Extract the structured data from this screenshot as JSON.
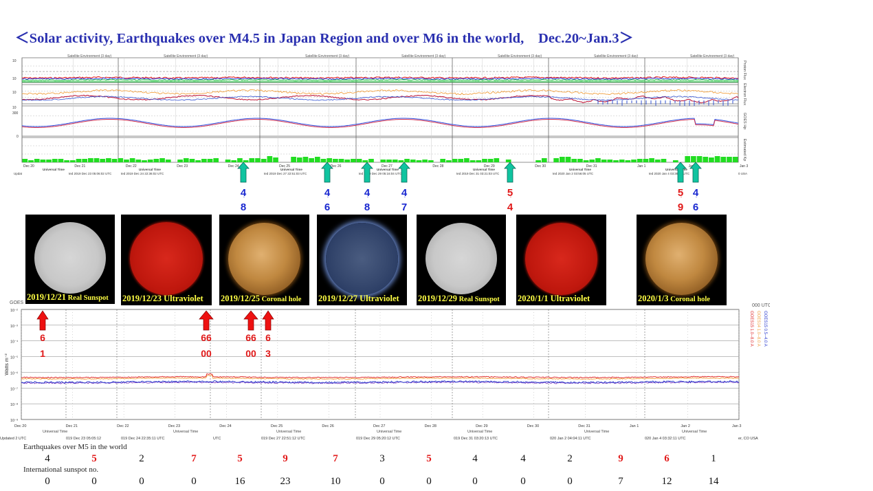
{
  "title": "＜Solar activity, Earthquakes over M4.5 in Japan Region and over M6 in the world,　Dec.20~Jan.3＞",
  "top_panel": {
    "header_labels": [
      "Satellite Environment (3 day)",
      "Satellite Environment (3 day)",
      "Satellite Environment (3 day)",
      "Satellite Environment (3 day)",
      "Satellite Environment (3 day)",
      "Satellite Environment (3 day)",
      "Satellite Environment (3 day)"
    ],
    "right_labels": [
      "Proton Flux",
      "Electron Flux",
      "GOES Hp",
      "Estimated Kp"
    ],
    "date_ticks": [
      "Dec 20",
      "Dec 21",
      "Dec 22",
      "Dec 23",
      "Dec 24",
      "Dec 25",
      "Dec 26",
      "Dec 27",
      "Dec 28",
      "Dec 29",
      "Dec 30",
      "Dec 31",
      "Jan 1",
      "Jan 2",
      "Jan 3"
    ],
    "universal_time_label": "Universal Time",
    "updated_labels": [
      "Updat",
      "ted 2019 Dec 23 05:06:02 UTC",
      "ted 2019 Dec 24 22:36:02 UTC",
      "ted 2019 Dec 27 22:51:03 UTC",
      "ted 2019 Dec 29 05:16:04 UTC",
      "ted 2019 Dec 31 03:21:03 UTC",
      "ted 2020 Jan  2 03:56:05 UTC",
      "ted 2020 Jan  4 03:36:05 UTC",
      "0 USA"
    ]
  },
  "japan_quakes": [
    {
      "top": "4",
      "bottom": "8",
      "color": "blue"
    },
    {
      "top": "4",
      "bottom": "6",
      "color": "blue"
    },
    {
      "top": "4",
      "bottom": "8",
      "color": "blue"
    },
    {
      "top": "4",
      "bottom": "7",
      "color": "blue"
    },
    {
      "top": "5",
      "bottom": "4",
      "color": "red"
    },
    {
      "top": "5",
      "bottom": "9",
      "color": "red"
    },
    {
      "top": "4",
      "bottom": "6",
      "color": "blue"
    }
  ],
  "sun_images": [
    {
      "caption": "2019/12/21",
      "caption_small": "Real Sunspot",
      "kind": "white"
    },
    {
      "caption": "2019/12/23 Ultraviolet",
      "caption_small": "",
      "kind": "red"
    },
    {
      "caption": "2019/12/25",
      "caption_small": "Coronal hole",
      "kind": "gold"
    },
    {
      "caption": "2019/12/27 Ultraviolet",
      "caption_small": "",
      "kind": "blue"
    },
    {
      "caption": "2019/12/29",
      "caption_small": "Real Sunspot",
      "kind": "white"
    },
    {
      "caption": "2020/1/1 Ultraviolet",
      "caption_small": "",
      "kind": "red"
    },
    {
      "caption": "2020/1/3",
      "caption_small": "Coronal hole",
      "kind": "gold"
    }
  ],
  "xray_panel": {
    "header_left": "GOES",
    "header_right": "000 UTC",
    "y_label": "Watts m⁻²",
    "y_ticks": [
      "10⁻²",
      "10⁻³",
      "10⁻⁴",
      "10⁻⁵",
      "10⁻⁶",
      "10⁻⁷",
      "10⁻⁸",
      "10⁻⁹"
    ],
    "right_legend": [
      "GOES15  1.0--8.0 A",
      "GOES14  1.0--8.0 A",
      "GOES15  0.5--4.0 A",
      "GOES14  0.5--4.0 A"
    ],
    "date_ticks": [
      "Dec 20",
      "Dec 21",
      "Dec 22",
      "Dec 23",
      "Dec 24",
      "Dec 25",
      "Dec 26",
      "Dec 27",
      "Dec 28",
      "Dec 29",
      "Dec 30",
      "Dec 31",
      "Jan 1",
      "Jan 2",
      "Jan 3"
    ],
    "universal_time_label": "Universal Time",
    "updated_labels": [
      "Updated 2 UTC",
      "019 Dec 23 05:05:12",
      "019 Dec 24 22:35:11 UTC",
      "UTC",
      "019 Dec 27 22:51:12 UTC",
      "019 Dec 29 05:20:12 UTC",
      "019 Dec 31 03:20:13 UTC",
      "020 Jan  2 04:04:11 UTC",
      "020 Jan  4 03:32:11 UTC",
      "er, CO USA"
    ]
  },
  "world_quakes": [
    {
      "top": "6",
      "bottom": "1"
    },
    {
      "top": "66",
      "bottom": "00"
    },
    {
      "top": "66",
      "bottom": "00"
    },
    {
      "top": "6",
      "bottom": "3"
    }
  ],
  "bottom_table": {
    "row1_label": "Earthquakes over M5 in the world",
    "row2_label": "International sunspot no.",
    "earthquakes": [
      {
        "v": "4",
        "red": false
      },
      {
        "v": "5",
        "red": true
      },
      {
        "v": "2",
        "red": false
      },
      {
        "v": "7",
        "red": true
      },
      {
        "v": "5",
        "red": true
      },
      {
        "v": "9",
        "red": true
      },
      {
        "v": "7",
        "red": true
      },
      {
        "v": "3",
        "red": false
      },
      {
        "v": "5",
        "red": true
      },
      {
        "v": "4",
        "red": false
      },
      {
        "v": "4",
        "red": false
      },
      {
        "v": "2",
        "red": false
      },
      {
        "v": "9",
        "red": true
      },
      {
        "v": "6",
        "red": true
      },
      {
        "v": "1",
        "red": false
      }
    ],
    "sunspots": [
      {
        "v": "0",
        "red": false
      },
      {
        "v": "0",
        "red": false
      },
      {
        "v": "0",
        "red": false
      },
      {
        "v": "0",
        "red": false
      },
      {
        "v": "16",
        "red": false
      },
      {
        "v": "23",
        "red": false
      },
      {
        "v": "10",
        "red": false
      },
      {
        "v": "0",
        "red": false
      },
      {
        "v": "0",
        "red": false
      },
      {
        "v": "0",
        "red": false
      },
      {
        "v": "0",
        "red": false
      },
      {
        "v": "0",
        "red": false
      },
      {
        "v": "7",
        "red": false
      },
      {
        "v": "12",
        "red": false
      },
      {
        "v": "14",
        "red": false
      }
    ]
  },
  "chart_data": [
    {
      "type": "bar",
      "categories": [
        "Dec 20",
        "Dec 21",
        "Dec 22",
        "Dec 23",
        "Dec 24",
        "Dec 25",
        "Dec 26",
        "Dec 27",
        "Dec 28",
        "Dec 29",
        "Dec 30",
        "Dec 31",
        "Jan 1",
        "Jan 2",
        "Jan 3"
      ],
      "series": [
        {
          "name": "Earthquakes over M5 in the world",
          "values": [
            4,
            5,
            2,
            7,
            5,
            9,
            7,
            3,
            5,
            4,
            4,
            2,
            9,
            6,
            1
          ]
        },
        {
          "name": "International sunspot no.",
          "values": [
            0,
            0,
            0,
            0,
            16,
            23,
            10,
            0,
            0,
            0,
            0,
            0,
            7,
            12,
            14
          ]
        }
      ]
    }
  ]
}
